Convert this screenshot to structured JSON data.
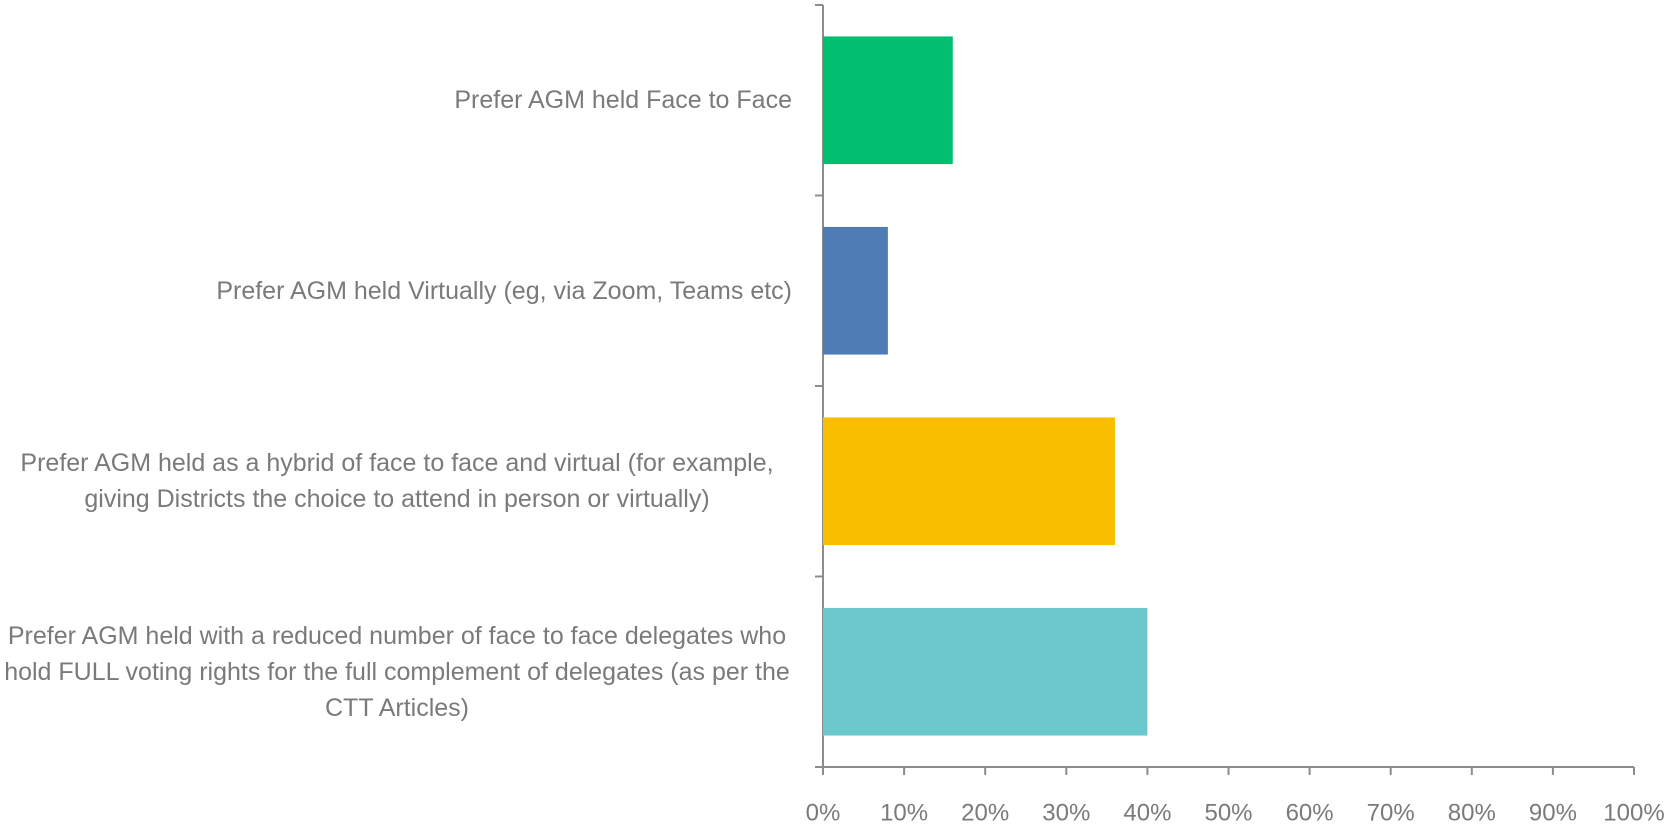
{
  "chart_data": {
    "type": "barh",
    "categories": [
      "Prefer AGM held Face to Face",
      "Prefer AGM held Virtually (eg, via Zoom, Teams etc)",
      "Prefer AGM held as a hybrid of face to face and virtual (for example, giving Districts the choice to attend in person or virtually)",
      "Prefer AGM held with a reduced number of face to face delegates who hold FULL voting rights for the full complement of delegates (as per the CTT Articles)"
    ],
    "values": [
      16,
      8,
      36,
      40
    ],
    "colors": [
      "#00bf6f",
      "#507cb6",
      "#f9be00",
      "#6bc8cd"
    ],
    "xlim": [
      0,
      100
    ],
    "xticks": [
      {
        "value": 0,
        "label": "0%"
      },
      {
        "value": 10,
        "label": "10%"
      },
      {
        "value": 20,
        "label": "20%"
      },
      {
        "value": 30,
        "label": "30%"
      },
      {
        "value": 40,
        "label": "40%"
      },
      {
        "value": 50,
        "label": "50%"
      },
      {
        "value": 60,
        "label": "60%"
      },
      {
        "value": 70,
        "label": "70%"
      },
      {
        "value": 80,
        "label": "80%"
      },
      {
        "value": 90,
        "label": "90%"
      },
      {
        "value": 100,
        "label": "100%"
      }
    ],
    "grid": false
  }
}
